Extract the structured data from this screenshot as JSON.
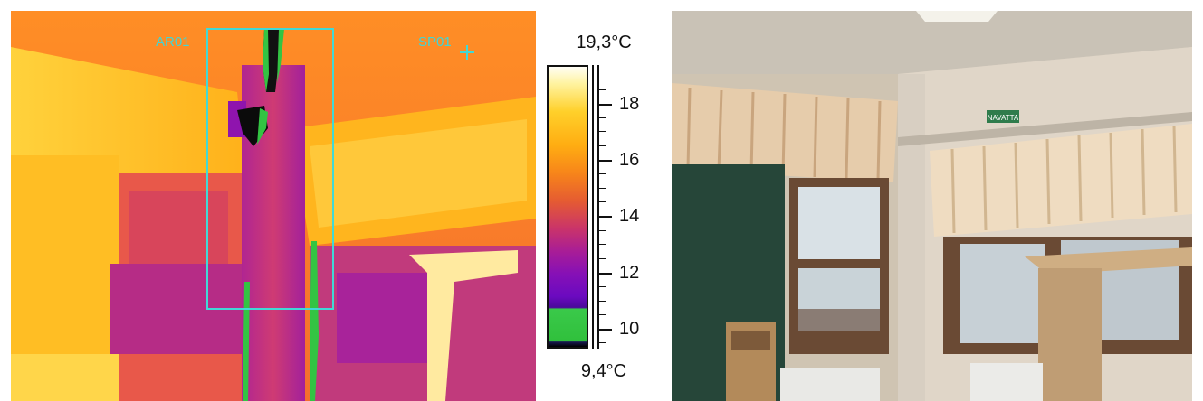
{
  "thermal_image": {
    "area_label": "AR01",
    "spot_label": "SP01"
  },
  "scale": {
    "max_label": "19,3°C",
    "min_label": "9,4°C",
    "tick_labels": [
      "18",
      "16",
      "14",
      "12",
      "10"
    ]
  },
  "visible_image": {
    "exit_sign": "NAVATTA"
  }
}
